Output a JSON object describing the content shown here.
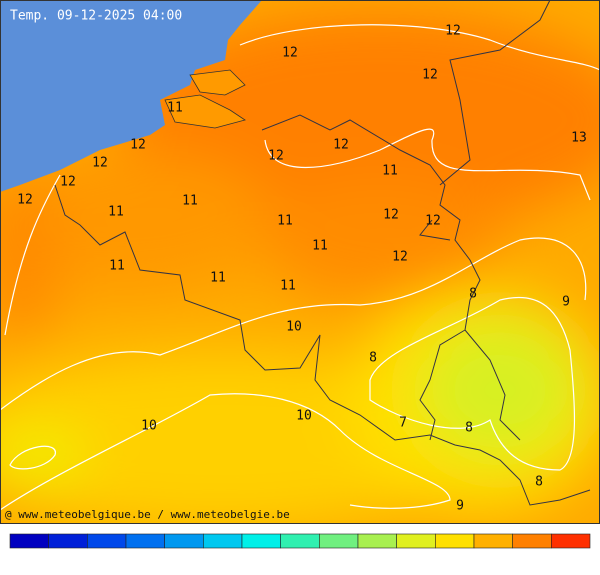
{
  "map": {
    "title": "Temp. 09-12-2025 04:00",
    "credit": "@ www.meteobelgique.be / www.meteobelgie.be",
    "temperature_labels": [
      12,
      12,
      12,
      13,
      11,
      12,
      12,
      12,
      12,
      12,
      12,
      11,
      11,
      11,
      11,
      12,
      12,
      11,
      12,
      11,
      11,
      11,
      8,
      9,
      10,
      8,
      10,
      10,
      7,
      8,
      8,
      9
    ]
  }
}
